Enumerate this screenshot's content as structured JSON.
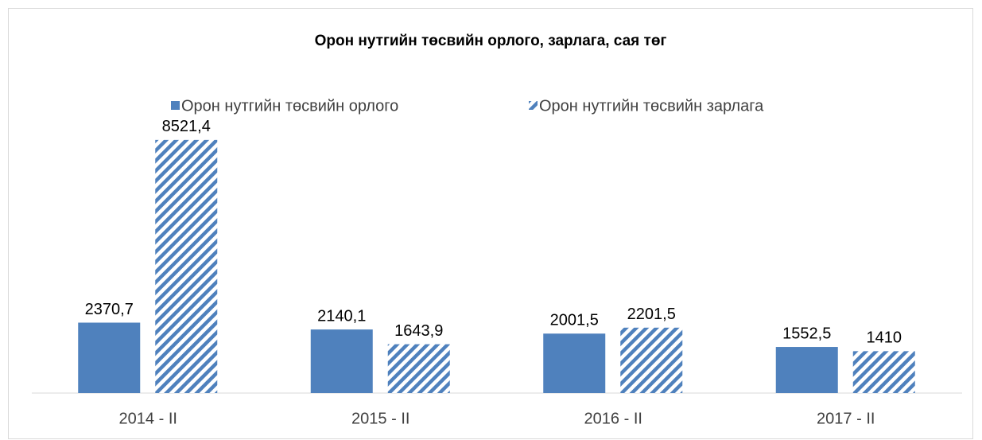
{
  "chart_data": {
    "type": "bar",
    "title": "Орон нутгийн төсвийн орлого, зарлага, сая төг",
    "categories": [
      "2014 - II",
      "2015 - II",
      "2016 - II",
      "2017 - II"
    ],
    "series": [
      {
        "name": "Орон нутгийн төсвийн орлого",
        "color": "#4f81bd",
        "pattern": "solid",
        "values": [
          2370.7,
          2140.1,
          2001.5,
          1552.5
        ],
        "value_labels": [
          "2370,7",
          "2140,1",
          "2001,5",
          "1552,5"
        ]
      },
      {
        "name": "Орон нутгийн төсвийн зарлага",
        "color": "#4f81bd",
        "pattern": "hatch",
        "values": [
          8521.4,
          1643.9,
          2201.5,
          1410
        ],
        "value_labels": [
          "8521,4",
          "1643,9",
          "2201,5",
          "1410"
        ]
      }
    ],
    "ylim": [
      0,
      9000
    ],
    "legend": "top"
  }
}
